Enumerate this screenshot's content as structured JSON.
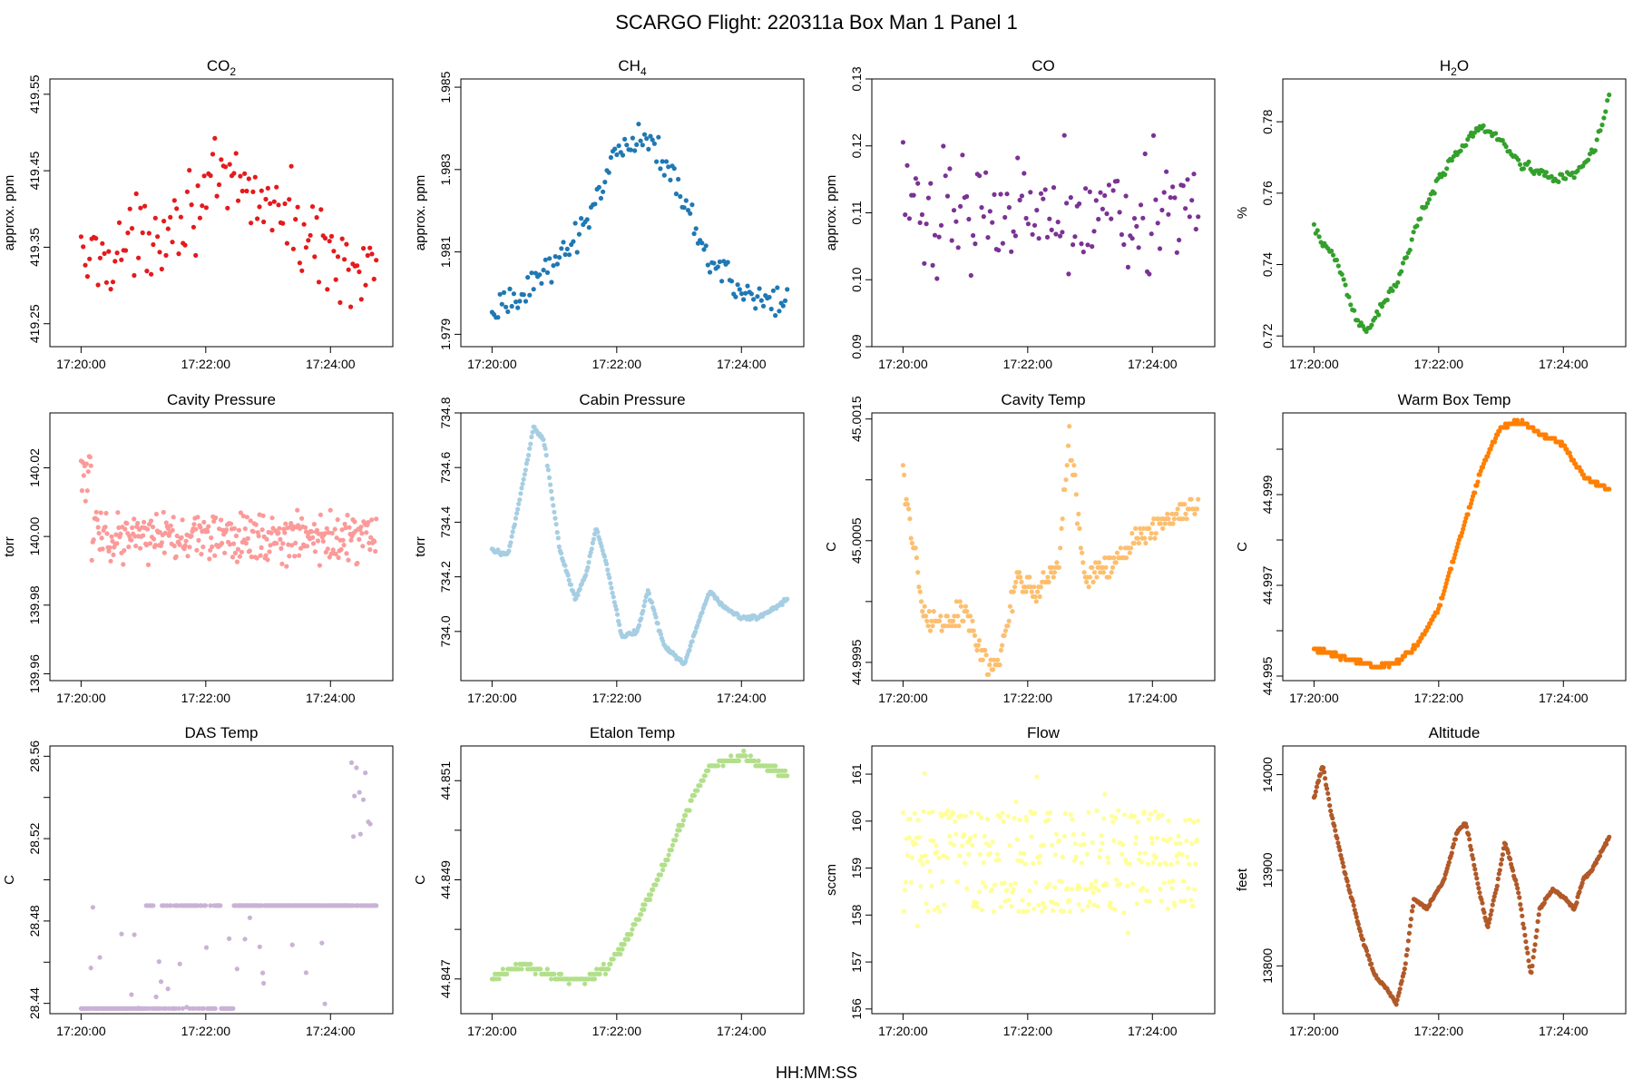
{
  "figure": {
    "title": "SCARGO Flight: 220311a  Box Man 1 Panel 1",
    "x_axis_title": "HH:MM:SS"
  },
  "chart_data": [
    {
      "type": "scatter",
      "title": "CO",
      "title_sub": "2",
      "ylabel": "approx. ppm",
      "ylim": [
        419.22,
        419.57
      ],
      "yticks": [
        419.25,
        419.35,
        419.45,
        419.55
      ],
      "ytick_labels": [
        "419.25",
        "419.35",
        "419.45",
        "419.55"
      ],
      "color": "#e41a1c",
      "xticks": [
        "17:20:00",
        "17:22:00",
        "17:24:00"
      ],
      "xlim_s": [
        -30,
        300
      ],
      "series_shape": "co2",
      "n_points": 140
    },
    {
      "type": "scatter",
      "title": "CH",
      "title_sub": "4",
      "ylabel": "approx. ppm",
      "ylim": [
        1.9787,
        1.9852
      ],
      "yticks": [
        1.979,
        1.981,
        1.983,
        1.985
      ],
      "ytick_labels": [
        "1.979",
        "1.981",
        "1.983",
        "1.985"
      ],
      "color": "#1f78b4",
      "xticks": [
        "17:20:00",
        "17:22:00",
        "17:24:00"
      ],
      "xlim_s": [
        -30,
        300
      ],
      "series_shape": "ch4",
      "n_points": 150
    },
    {
      "type": "scatter",
      "title": "CO",
      "title_sub": "",
      "ylabel": "approx. ppm",
      "ylim": [
        0.09,
        0.13
      ],
      "yticks": [
        0.09,
        0.1,
        0.11,
        0.12,
        0.13
      ],
      "ytick_labels": [
        "0.09",
        "0.10",
        "0.11",
        "0.12",
        "0.13"
      ],
      "color": "#7b3294",
      "xticks": [
        "17:20:00",
        "17:22:00",
        "17:24:00"
      ],
      "xlim_s": [
        -30,
        300
      ],
      "series_shape": "co",
      "n_points": 140
    },
    {
      "type": "scatter",
      "title": "H",
      "title_sub": "2",
      "title_suffix": "O",
      "ylabel": "%",
      "ylim": [
        0.717,
        0.792
      ],
      "yticks": [
        0.72,
        0.74,
        0.76,
        0.78
      ],
      "ytick_labels": [
        "0.72",
        "0.74",
        "0.76",
        "0.78"
      ],
      "color": "#33a02c",
      "xticks": [
        "17:20:00",
        "17:22:00",
        "17:24:00"
      ],
      "xlim_s": [
        -30,
        300
      ],
      "series_shape": "h2o",
      "n_points": 170
    },
    {
      "type": "scatter",
      "title": "Cavity Pressure",
      "title_sub": "",
      "ylabel": "torr",
      "ylim": [
        139.958,
        140.036
      ],
      "yticks": [
        139.96,
        139.98,
        140.0,
        140.02
      ],
      "ytick_labels": [
        "139.96",
        "139.98",
        "140.00",
        "140.02"
      ],
      "color": "#fb9a99",
      "xticks": [
        "17:20:00",
        "17:22:00",
        "17:24:00"
      ],
      "xlim_s": [
        -30,
        300
      ],
      "series_shape": "cavp",
      "n_points": 330
    },
    {
      "type": "scatter",
      "title": "Cabin Pressure",
      "title_sub": "",
      "ylabel": "torr",
      "ylim": [
        733.82,
        734.8
      ],
      "yticks": [
        734.0,
        734.2,
        734.4,
        734.6,
        734.8
      ],
      "ytick_labels": [
        "734.0",
        "734.2",
        "734.4",
        "734.6",
        "734.8"
      ],
      "color": "#a6cee3",
      "xticks": [
        "17:20:00",
        "17:22:00",
        "17:24:00"
      ],
      "xlim_s": [
        -30,
        300
      ],
      "series_shape": "cabp",
      "n_points": 300
    },
    {
      "type": "scatter",
      "title": "Cavity Temp",
      "title_sub": "",
      "ylabel": "C",
      "ylim": [
        44.99935,
        45.00155
      ],
      "yticks": [
        44.9995,
        45.0005,
        45.0015
      ],
      "ytick_labels": [
        "44.9995",
        "45.0005",
        "45.0015"
      ],
      "extra_yticks": [
        45.0,
        45.001
      ],
      "color": "#fdbf6f",
      "xticks": [
        "17:20:00",
        "17:22:00",
        "17:24:00"
      ],
      "xlim_s": [
        -30,
        300
      ],
      "series_shape": "cavt",
      "n_points": 260
    },
    {
      "type": "scatter",
      "title": "Warm Box Temp",
      "title_sub": "",
      "ylabel": "C",
      "ylim": [
        44.9949,
        45.0008
      ],
      "yticks": [
        44.995,
        44.997,
        44.999
      ],
      "ytick_labels": [
        "44.995",
        "44.997",
        "44.999"
      ],
      "extra_yticks": [
        44.996,
        44.998,
        45.0
      ],
      "color": "#ff7f00",
      "xticks": [
        "17:20:00",
        "17:22:00",
        "17:24:00"
      ],
      "xlim_s": [
        -30,
        300
      ],
      "series_shape": "wbt",
      "n_points": 300
    },
    {
      "type": "scatter",
      "title": "DAS Temp",
      "title_sub": "",
      "ylabel": "C",
      "ylim": [
        28.435,
        28.565
      ],
      "yticks": [
        28.44,
        28.48,
        28.52,
        28.56
      ],
      "ytick_labels": [
        "28.44",
        "28.48",
        "28.52",
        "28.56"
      ],
      "extra_yticks": [
        28.46,
        28.5,
        28.54
      ],
      "color": "#cab2d6",
      "xticks": [
        "17:20:00",
        "17:22:00",
        "17:24:00"
      ],
      "xlim_s": [
        -30,
        300
      ],
      "series_shape": "dast",
      "n_points": 300
    },
    {
      "type": "scatter",
      "title": "Etalon Temp",
      "title_sub": "",
      "ylabel": "C",
      "ylim": [
        44.8463,
        44.8517
      ],
      "yticks": [
        44.847,
        44.849,
        44.851
      ],
      "ytick_labels": [
        "44.847",
        "44.849",
        "44.851"
      ],
      "extra_yticks": [
        44.848,
        44.85
      ],
      "color": "#b2df8a",
      "xticks": [
        "17:20:00",
        "17:22:00",
        "17:24:00"
      ],
      "xlim_s": [
        -30,
        300
      ],
      "series_shape": "etat",
      "n_points": 300
    },
    {
      "type": "scatter",
      "title": "Flow",
      "title_sub": "",
      "ylabel": "sccm",
      "ylim": [
        155.9,
        161.6
      ],
      "yticks": [
        156,
        157,
        158,
        159,
        160,
        161
      ],
      "ytick_labels": [
        "156",
        "157",
        "158",
        "159",
        "160",
        "161"
      ],
      "color": "#ffff99",
      "xticks": [
        "17:20:00",
        "17:22:00",
        "17:24:00"
      ],
      "xlim_s": [
        -30,
        300
      ],
      "series_shape": "flow",
      "n_points": 330
    },
    {
      "type": "scatter",
      "title": "Altitude",
      "title_sub": "",
      "ylabel": "feet",
      "ylim": [
        13750,
        14030
      ],
      "yticks": [
        13800,
        13900,
        14000
      ],
      "ytick_labels": [
        "13800",
        "13900",
        "14000"
      ],
      "color": "#b15928",
      "xticks": [
        "17:20:00",
        "17:22:00",
        "17:24:00"
      ],
      "xlim_s": [
        -30,
        300
      ],
      "series_shape": "alt",
      "n_points": 320
    }
  ]
}
